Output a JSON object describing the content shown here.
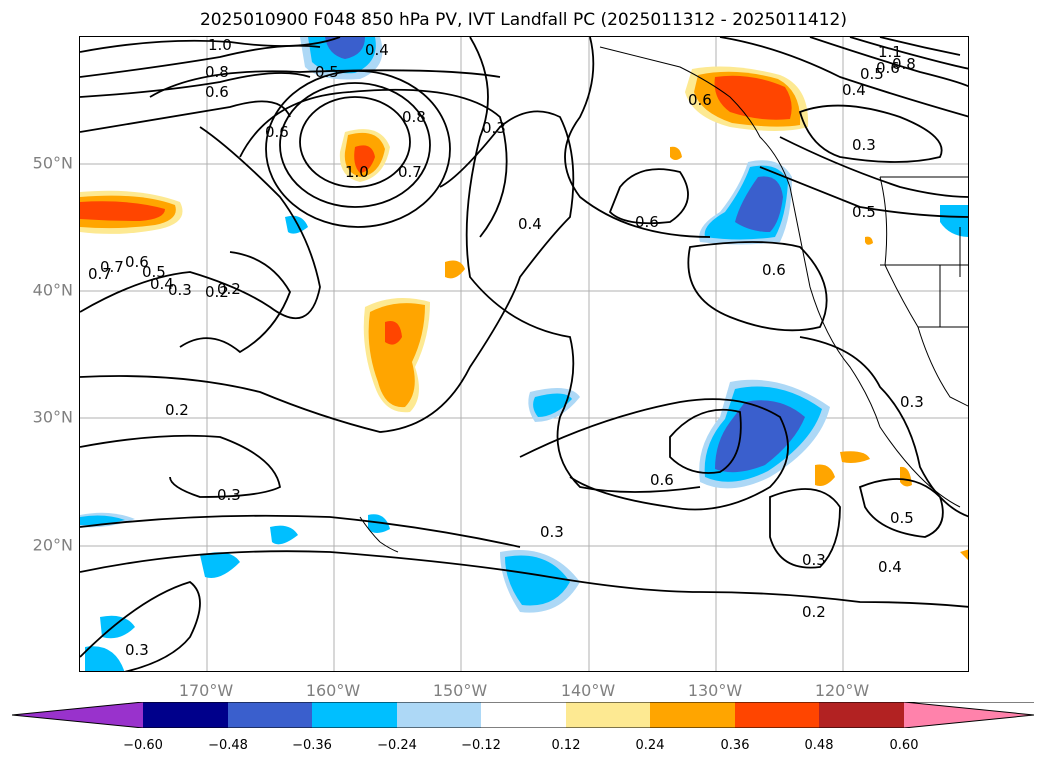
{
  "title": "2025010900 F048 850 hPa PV, IVT Landfall PC (2025011312 - 2025011412)",
  "lat_labels": [
    "50°N",
    "40°N",
    "30°N",
    "20°N"
  ],
  "lon_labels": [
    "170°W",
    "160°W",
    "150°W",
    "140°W",
    "130°W",
    "120°W"
  ],
  "contour_labels": [
    "1.0",
    "0.8",
    "0.6",
    "0.5",
    "0.4",
    "0.6",
    "0.7",
    "0.8",
    "1.0",
    "0.7",
    "0.3",
    "0.6",
    "0.4",
    "0.6",
    "0.6",
    "0.5",
    "0.3",
    "0.4",
    "0.5",
    "0.6",
    "0.8",
    "1.1",
    "0.7",
    "0.6",
    "0.5",
    "0.4",
    "0.3",
    "0.2",
    "0.2",
    "0.3",
    "0.3",
    "0.6",
    "0.3",
    "0.2",
    "0.3",
    "0.4",
    "0.5",
    "0.3",
    "0.2"
  ],
  "colorbar": {
    "ticks": [
      "−0.60",
      "−0.48",
      "−0.36",
      "−0.24",
      "−0.12",
      "0.12",
      "0.24",
      "0.36",
      "0.48",
      "0.60"
    ],
    "colors": {
      "under": "#9932cc",
      "n060": "#00008b",
      "n048": "#3a5fcd",
      "n036": "#00bfff",
      "n024": "#add8f6",
      "neutral": "#ffffff",
      "p012": "#fde992",
      "p024": "#ffa500",
      "p036": "#ff4500",
      "p048": "#b22222",
      "over": "#ff82ab"
    }
  }
}
